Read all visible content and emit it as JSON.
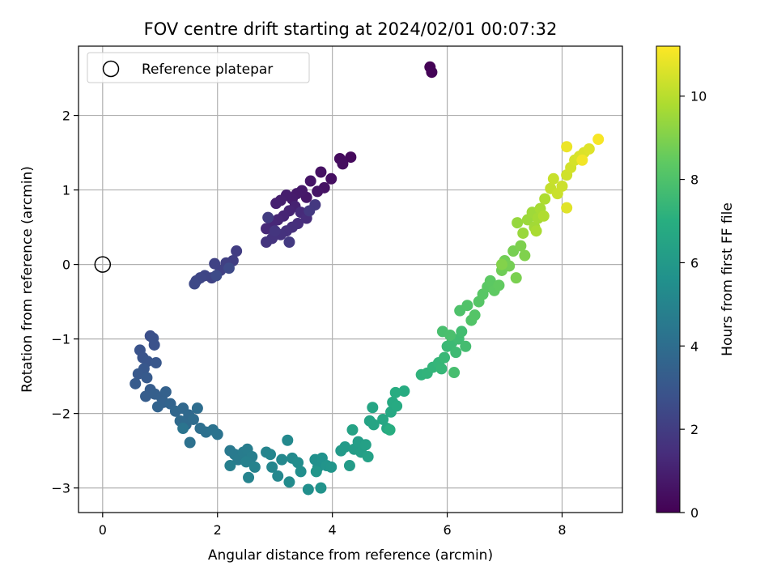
{
  "chart_data": {
    "type": "scatter",
    "title": "FOV centre drift starting at 2024/02/01 00:07:32",
    "xlabel": "Angular distance from reference (arcmin)",
    "ylabel": "Rotation from reference (arcmin)",
    "xlim": [
      -0.42,
      9.05
    ],
    "ylim": [
      -3.33,
      2.93
    ],
    "xticks": [
      0,
      2,
      4,
      6,
      8
    ],
    "yticks": [
      -3,
      -2,
      -1,
      0,
      1,
      2
    ],
    "xtick_labels": [
      "0",
      "2",
      "4",
      "6",
      "8"
    ],
    "ytick_labels": [
      "−3",
      "−2",
      "−1",
      "0",
      "1",
      "2"
    ],
    "grid": true,
    "legend": {
      "position": "top-left",
      "entries": [
        "Reference platepar"
      ]
    },
    "reference_point": {
      "x": 0,
      "y": 0
    },
    "colormap": "viridis",
    "colorbar": {
      "label": "Hours from first FF file",
      "range": [
        0,
        11.2
      ],
      "ticks": [
        0,
        2,
        4,
        6,
        8,
        10
      ],
      "tick_labels": [
        "0",
        "2",
        "4",
        "6",
        "8",
        "10"
      ]
    },
    "points": [
      [
        5.7,
        2.65,
        0.05
      ],
      [
        5.73,
        2.58,
        0.1
      ],
      [
        4.32,
        1.44,
        0.3
      ],
      [
        4.13,
        1.42,
        0.35
      ],
      [
        4.18,
        1.35,
        0.4
      ],
      [
        3.98,
        1.15,
        0.45
      ],
      [
        3.8,
        1.24,
        0.5
      ],
      [
        3.86,
        1.03,
        0.55
      ],
      [
        3.74,
        0.98,
        0.6
      ],
      [
        3.62,
        1.12,
        0.65
      ],
      [
        3.55,
        0.9,
        0.7
      ],
      [
        3.47,
        0.99,
        0.75
      ],
      [
        3.38,
        0.95,
        0.8
      ],
      [
        3.3,
        0.88,
        0.85
      ],
      [
        3.2,
        0.93,
        0.9
      ],
      [
        3.1,
        0.86,
        0.95
      ],
      [
        3.02,
        0.82,
        1.0
      ],
      [
        3.35,
        0.78,
        1.05
      ],
      [
        3.25,
        0.72,
        1.1
      ],
      [
        3.15,
        0.65,
        1.15
      ],
      [
        3.05,
        0.6,
        1.2
      ],
      [
        2.95,
        0.55,
        1.25
      ],
      [
        2.85,
        0.48,
        1.3
      ],
      [
        3.45,
        0.7,
        1.35
      ],
      [
        3.55,
        0.62,
        1.4
      ],
      [
        3.4,
        0.55,
        1.45
      ],
      [
        3.3,
        0.5,
        1.5
      ],
      [
        3.2,
        0.45,
        1.55
      ],
      [
        3.1,
        0.4,
        1.6
      ],
      [
        2.95,
        0.35,
        1.65
      ],
      [
        2.85,
        0.3,
        1.7
      ],
      [
        3.0,
        0.45,
        1.75
      ],
      [
        3.7,
        0.8,
        1.8
      ],
      [
        3.6,
        0.72,
        1.85
      ],
      [
        3.25,
        0.3,
        1.9
      ],
      [
        2.88,
        0.63,
        1.95
      ],
      [
        2.33,
        0.18,
        2.0
      ],
      [
        2.27,
        0.05,
        2.05
      ],
      [
        2.15,
        0.02,
        2.1
      ],
      [
        2.05,
        -0.08,
        2.15
      ],
      [
        1.95,
        0.01,
        2.2
      ],
      [
        1.9,
        -0.18,
        2.25
      ],
      [
        1.78,
        -0.15,
        2.3
      ],
      [
        1.7,
        -0.18,
        2.35
      ],
      [
        1.63,
        -0.22,
        2.4
      ],
      [
        1.6,
        -0.26,
        2.45
      ],
      [
        2.2,
        -0.05,
        2.5
      ],
      [
        1.98,
        -0.15,
        2.55
      ],
      [
        0.83,
        -0.96,
        2.7
      ],
      [
        0.88,
        -0.99,
        2.75
      ],
      [
        0.9,
        -1.08,
        2.8
      ],
      [
        0.65,
        -1.15,
        2.85
      ],
      [
        0.7,
        -1.25,
        2.9
      ],
      [
        0.78,
        -1.3,
        2.95
      ],
      [
        0.93,
        -1.32,
        3.0
      ],
      [
        0.72,
        -1.4,
        3.05
      ],
      [
        0.62,
        -1.47,
        3.1
      ],
      [
        0.77,
        -1.52,
        3.15
      ],
      [
        0.57,
        -1.6,
        3.2
      ],
      [
        0.83,
        -1.68,
        3.25
      ],
      [
        0.75,
        -1.77,
        3.3
      ],
      [
        0.91,
        -1.74,
        3.35
      ],
      [
        1.03,
        -1.79,
        3.4
      ],
      [
        1.1,
        -1.71,
        3.45
      ],
      [
        1.06,
        -1.85,
        3.5
      ],
      [
        0.96,
        -1.91,
        3.55
      ],
      [
        1.18,
        -1.87,
        3.6
      ],
      [
        1.27,
        -1.97,
        3.7
      ],
      [
        1.4,
        -1.93,
        3.75
      ],
      [
        1.5,
        -2.02,
        3.8
      ],
      [
        1.35,
        -2.1,
        3.85
      ],
      [
        1.45,
        -2.15,
        3.9
      ],
      [
        1.58,
        -2.08,
        3.95
      ],
      [
        1.65,
        -1.93,
        4.0
      ],
      [
        1.7,
        -2.2,
        4.05
      ],
      [
        1.8,
        -2.25,
        4.1
      ],
      [
        1.52,
        -2.39,
        4.15
      ],
      [
        1.92,
        -2.22,
        4.2
      ],
      [
        2.0,
        -2.28,
        4.25
      ],
      [
        1.4,
        -2.2,
        4.3
      ],
      [
        2.22,
        -2.5,
        4.5
      ],
      [
        2.3,
        -2.55,
        4.55
      ],
      [
        2.36,
        -2.62,
        4.6
      ],
      [
        2.45,
        -2.52,
        4.65
      ],
      [
        2.52,
        -2.48,
        4.7
      ],
      [
        2.6,
        -2.58,
        4.75
      ],
      [
        2.22,
        -2.7,
        4.8
      ],
      [
        2.5,
        -2.65,
        4.85
      ],
      [
        2.65,
        -2.72,
        4.9
      ],
      [
        2.54,
        -2.86,
        4.95
      ],
      [
        2.85,
        -2.52,
        5.0
      ],
      [
        2.92,
        -2.55,
        5.05
      ],
      [
        2.95,
        -2.72,
        5.1
      ],
      [
        3.05,
        -2.84,
        5.15
      ],
      [
        3.12,
        -2.62,
        5.2
      ],
      [
        3.22,
        -2.36,
        5.25
      ],
      [
        3.3,
        -2.6,
        5.3
      ],
      [
        3.25,
        -2.92,
        5.35
      ],
      [
        3.4,
        -2.66,
        5.4
      ],
      [
        3.45,
        -2.78,
        5.45
      ],
      [
        3.58,
        -3.02,
        5.5
      ],
      [
        3.7,
        -2.62,
        5.55
      ],
      [
        3.75,
        -2.72,
        5.6
      ],
      [
        3.82,
        -2.6,
        5.65
      ],
      [
        3.8,
        -3.0,
        5.7
      ],
      [
        3.9,
        -2.7,
        5.75
      ],
      [
        3.98,
        -2.72,
        5.8
      ],
      [
        3.72,
        -2.78,
        5.85
      ],
      [
        4.15,
        -2.5,
        6.0
      ],
      [
        4.22,
        -2.45,
        6.05
      ],
      [
        4.3,
        -2.7,
        6.1
      ],
      [
        4.38,
        -2.48,
        6.15
      ],
      [
        4.45,
        -2.38,
        6.2
      ],
      [
        4.5,
        -2.52,
        6.25
      ],
      [
        4.58,
        -2.42,
        6.3
      ],
      [
        4.62,
        -2.58,
        6.35
      ],
      [
        4.35,
        -2.22,
        6.4
      ],
      [
        4.65,
        -2.1,
        6.45
      ],
      [
        4.72,
        -2.15,
        6.5
      ],
      [
        4.7,
        -1.92,
        6.55
      ],
      [
        4.88,
        -2.08,
        6.6
      ],
      [
        4.95,
        -2.2,
        6.65
      ],
      [
        5.02,
        -1.98,
        6.7
      ],
      [
        5.05,
        -1.85,
        6.75
      ],
      [
        5.12,
        -1.9,
        6.8
      ],
      [
        5.25,
        -1.7,
        6.85
      ],
      [
        5.1,
        -1.72,
        6.9
      ],
      [
        5.0,
        -2.22,
        6.95
      ],
      [
        5.55,
        -1.48,
        7.2
      ],
      [
        5.65,
        -1.46,
        7.25
      ],
      [
        5.75,
        -1.38,
        7.3
      ],
      [
        5.85,
        -1.32,
        7.35
      ],
      [
        5.9,
        -1.4,
        7.4
      ],
      [
        5.95,
        -1.25,
        7.45
      ],
      [
        6.0,
        -1.1,
        7.5
      ],
      [
        6.08,
        -1.05,
        7.55
      ],
      [
        6.15,
        -1.18,
        7.6
      ],
      [
        6.2,
        -1.0,
        7.65
      ],
      [
        6.25,
        -0.9,
        7.7
      ],
      [
        6.32,
        -1.1,
        7.75
      ],
      [
        6.12,
        -1.45,
        7.8
      ],
      [
        5.92,
        -0.9,
        7.85
      ],
      [
        6.05,
        -0.95,
        7.9
      ],
      [
        6.22,
        -0.62,
        8.0
      ],
      [
        6.35,
        -0.55,
        8.05
      ],
      [
        6.42,
        -0.75,
        8.1
      ],
      [
        6.48,
        -0.68,
        8.15
      ],
      [
        6.55,
        -0.5,
        8.2
      ],
      [
        6.62,
        -0.4,
        8.25
      ],
      [
        6.7,
        -0.3,
        8.3
      ],
      [
        6.75,
        -0.22,
        8.35
      ],
      [
        6.82,
        -0.35,
        8.4
      ],
      [
        6.9,
        -0.28,
        8.45
      ],
      [
        6.95,
        -0.08,
        8.7
      ],
      [
        7.0,
        0.05,
        8.75
      ],
      [
        7.08,
        -0.02,
        8.8
      ],
      [
        7.15,
        0.18,
        8.85
      ],
      [
        7.2,
        -0.18,
        8.9
      ],
      [
        7.28,
        0.25,
        8.95
      ],
      [
        7.35,
        0.12,
        9.0
      ],
      [
        6.95,
        0.0,
        9.05
      ],
      [
        7.22,
        0.56,
        9.4
      ],
      [
        7.32,
        0.42,
        9.45
      ],
      [
        7.4,
        0.6,
        9.5
      ],
      [
        7.48,
        0.7,
        9.55
      ],
      [
        7.52,
        0.5,
        9.6
      ],
      [
        7.58,
        0.62,
        9.65
      ],
      [
        7.62,
        0.75,
        9.7
      ],
      [
        7.55,
        0.45,
        9.75
      ],
      [
        7.7,
        0.88,
        9.8
      ],
      [
        7.68,
        0.65,
        9.85
      ],
      [
        7.8,
        1.02,
        10.2
      ],
      [
        7.85,
        1.15,
        10.25
      ],
      [
        7.92,
        0.95,
        10.3
      ],
      [
        8.0,
        1.05,
        10.35
      ],
      [
        8.08,
        1.2,
        10.4
      ],
      [
        8.15,
        1.3,
        10.45
      ],
      [
        8.22,
        1.4,
        10.5
      ],
      [
        8.3,
        1.45,
        10.55
      ],
      [
        8.38,
        1.5,
        10.6
      ],
      [
        8.47,
        1.55,
        10.65
      ],
      [
        8.08,
        0.76,
        10.7
      ],
      [
        8.08,
        1.58,
        10.9
      ],
      [
        8.35,
        1.4,
        11.0
      ],
      [
        8.63,
        1.68,
        11.1
      ]
    ]
  }
}
